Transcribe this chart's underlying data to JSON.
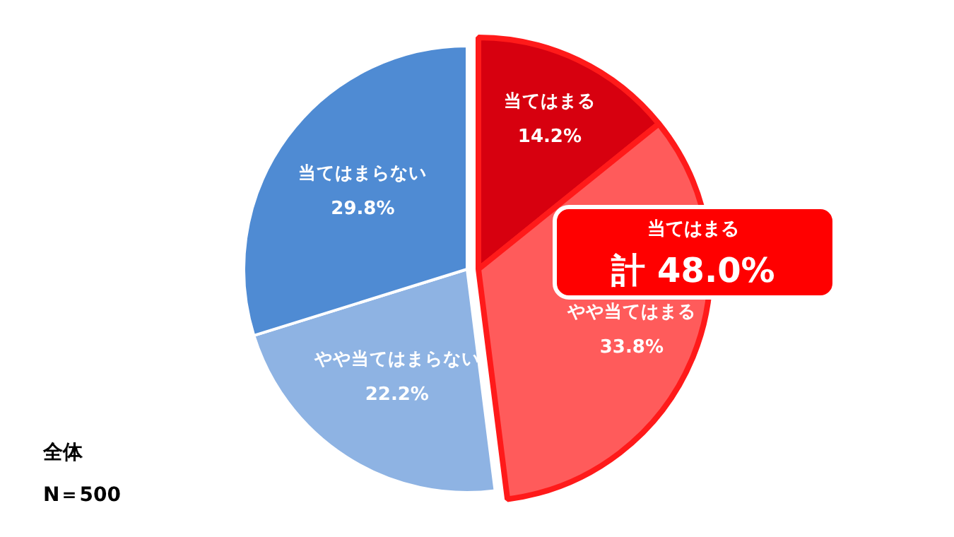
{
  "chart_data": {
    "type": "pie",
    "categories": [
      "当てはまる",
      "やや当てはまる",
      "やや当てはまらない",
      "当てはまらない"
    ],
    "values": [
      14.2,
      33.8,
      22.2,
      29.8
    ],
    "value_labels": [
      "14.2%",
      "33.8%",
      "22.2%",
      "29.8%"
    ],
    "colors": [
      "#d7000f",
      "#ff5b5b",
      "#8eb3e3",
      "#4f8bd3"
    ],
    "annotations": [
      "当てはまる",
      "計 48.0%",
      "全体",
      "N＝500"
    ]
  }
}
